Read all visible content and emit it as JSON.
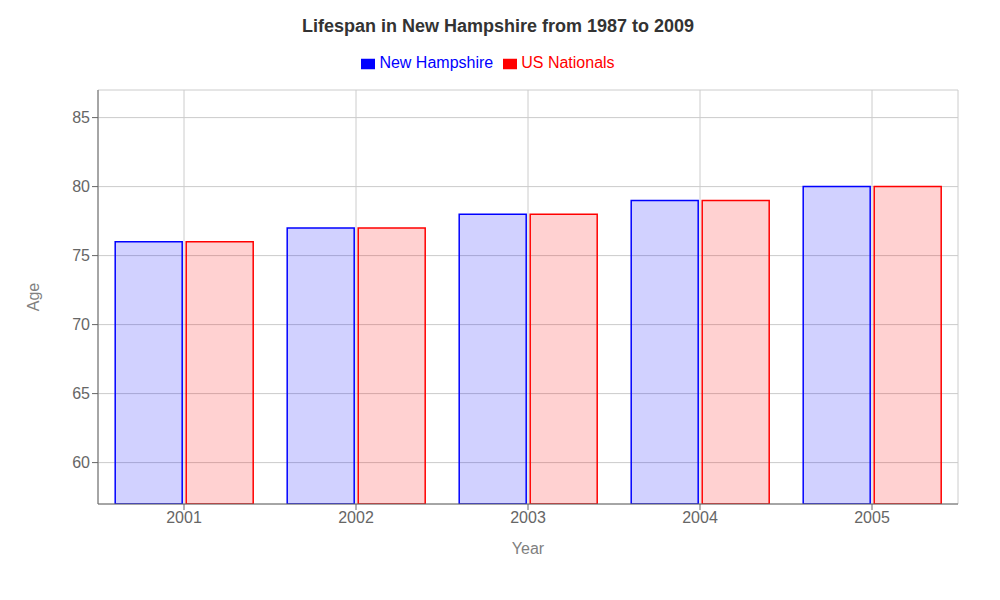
{
  "chart_data": {
    "type": "bar",
    "title": "Lifespan in New Hampshire from 1987 to 2009",
    "xlabel": "Year",
    "ylabel": "Age",
    "categories": [
      "2001",
      "2002",
      "2003",
      "2004",
      "2005"
    ],
    "series": [
      {
        "name": "New Hampshire",
        "color": "#0000ff",
        "values": [
          76,
          77,
          78,
          79,
          80
        ]
      },
      {
        "name": "US Nationals",
        "color": "#ff0000",
        "values": [
          76,
          77,
          78,
          79,
          80
        ]
      }
    ],
    "ylim": [
      57,
      87
    ],
    "yticks": [
      60,
      65,
      70,
      75,
      80,
      85
    ],
    "grid": true,
    "legend": "top"
  }
}
